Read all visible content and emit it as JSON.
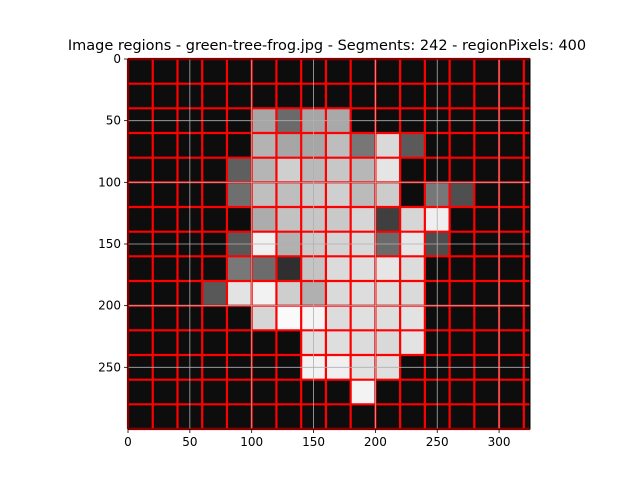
{
  "chart_data": {
    "type": "heatmap",
    "title": "Image regions - green-tree-frog.jpg - Segments: 242 - regionPixels: 400",
    "xlabel": "",
    "ylabel": "",
    "xlim": [
      0,
      325
    ],
    "ylim": [
      300,
      0
    ],
    "x_ticks": [
      0,
      50,
      100,
      150,
      200,
      250,
      300
    ],
    "y_ticks": [
      0,
      50,
      100,
      150,
      200,
      250
    ],
    "grid": true,
    "image_width": 325,
    "image_height": 300,
    "region_outline_color": "#ff0000",
    "grid_color": "#b0b0b0",
    "background_color": "#0d0d0d",
    "grid_lines_x": [
      0,
      20,
      40,
      60,
      80,
      100,
      120,
      140,
      160,
      180,
      200,
      220,
      240,
      260,
      280,
      300,
      320
    ],
    "grid_lines_y": [
      0,
      20,
      40,
      60,
      80,
      100,
      120,
      140,
      160,
      180,
      200,
      220,
      240,
      260,
      280,
      300
    ],
    "region_cells": [
      {
        "x": 100,
        "y": 40,
        "w": 20,
        "h": 20,
        "shade": "#a6a6a6"
      },
      {
        "x": 120,
        "y": 40,
        "w": 20,
        "h": 20,
        "shade": "#6a6a6a"
      },
      {
        "x": 140,
        "y": 40,
        "w": 20,
        "h": 20,
        "shade": "#a6a6a6"
      },
      {
        "x": 160,
        "y": 40,
        "w": 20,
        "h": 20,
        "shade": "#a9a9a9"
      },
      {
        "x": 180,
        "y": 60,
        "w": 20,
        "h": 20,
        "shade": "#777777"
      },
      {
        "x": 200,
        "y": 60,
        "w": 20,
        "h": 20,
        "shade": "#d9d9d9"
      },
      {
        "x": 220,
        "y": 60,
        "w": 20,
        "h": 20,
        "shade": "#5a5a5a"
      },
      {
        "x": 100,
        "y": 60,
        "w": 20,
        "h": 20,
        "shade": "#b3b3b3"
      },
      {
        "x": 120,
        "y": 60,
        "w": 20,
        "h": 20,
        "shade": "#a6a6a6"
      },
      {
        "x": 140,
        "y": 60,
        "w": 20,
        "h": 20,
        "shade": "#a6a6a6"
      },
      {
        "x": 160,
        "y": 60,
        "w": 20,
        "h": 20,
        "shade": "#bdbdbd"
      },
      {
        "x": 80,
        "y": 80,
        "w": 20,
        "h": 20,
        "shade": "#5f5f5f"
      },
      {
        "x": 100,
        "y": 80,
        "w": 20,
        "h": 20,
        "shade": "#b5b5b5"
      },
      {
        "x": 120,
        "y": 80,
        "w": 20,
        "h": 20,
        "shade": "#cfcfcf"
      },
      {
        "x": 140,
        "y": 80,
        "w": 20,
        "h": 20,
        "shade": "#b9b9b9"
      },
      {
        "x": 160,
        "y": 80,
        "w": 20,
        "h": 20,
        "shade": "#c7c7c7"
      },
      {
        "x": 180,
        "y": 80,
        "w": 20,
        "h": 20,
        "shade": "#b7b7b7"
      },
      {
        "x": 200,
        "y": 80,
        "w": 20,
        "h": 20,
        "shade": "#e5e5e5"
      },
      {
        "x": 240,
        "y": 100,
        "w": 20,
        "h": 20,
        "shade": "#777777"
      },
      {
        "x": 260,
        "y": 100,
        "w": 20,
        "h": 20,
        "shade": "#4f4f4f"
      },
      {
        "x": 80,
        "y": 100,
        "w": 20,
        "h": 20,
        "shade": "#6f6f6f"
      },
      {
        "x": 100,
        "y": 100,
        "w": 20,
        "h": 20,
        "shade": "#bfbfbf"
      },
      {
        "x": 120,
        "y": 100,
        "w": 20,
        "h": 20,
        "shade": "#bebebe"
      },
      {
        "x": 140,
        "y": 100,
        "w": 20,
        "h": 20,
        "shade": "#c8c8c8"
      },
      {
        "x": 160,
        "y": 100,
        "w": 20,
        "h": 20,
        "shade": "#cfcfcf"
      },
      {
        "x": 180,
        "y": 100,
        "w": 20,
        "h": 20,
        "shade": "#bbbbbb"
      },
      {
        "x": 200,
        "y": 100,
        "w": 20,
        "h": 20,
        "shade": "#cccccc"
      },
      {
        "x": 100,
        "y": 120,
        "w": 20,
        "h": 20,
        "shade": "#acacac"
      },
      {
        "x": 120,
        "y": 120,
        "w": 20,
        "h": 20,
        "shade": "#c2c2c2"
      },
      {
        "x": 140,
        "y": 120,
        "w": 20,
        "h": 20,
        "shade": "#c6c6c6"
      },
      {
        "x": 160,
        "y": 120,
        "w": 20,
        "h": 20,
        "shade": "#c9c9c9"
      },
      {
        "x": 180,
        "y": 120,
        "w": 20,
        "h": 20,
        "shade": "#d6d6d6"
      },
      {
        "x": 200,
        "y": 120,
        "w": 20,
        "h": 20,
        "shade": "#3f3f3f"
      },
      {
        "x": 220,
        "y": 120,
        "w": 20,
        "h": 20,
        "shade": "#d6d6d6"
      },
      {
        "x": 240,
        "y": 120,
        "w": 20,
        "h": 20,
        "shade": "#efefef"
      },
      {
        "x": 80,
        "y": 140,
        "w": 20,
        "h": 20,
        "shade": "#585858"
      },
      {
        "x": 100,
        "y": 140,
        "w": 20,
        "h": 20,
        "shade": "#f0f0f0"
      },
      {
        "x": 120,
        "y": 140,
        "w": 20,
        "h": 20,
        "shade": "#b1b1b1"
      },
      {
        "x": 140,
        "y": 140,
        "w": 20,
        "h": 20,
        "shade": "#cbcbcb"
      },
      {
        "x": 160,
        "y": 140,
        "w": 20,
        "h": 20,
        "shade": "#d4d4d4"
      },
      {
        "x": 180,
        "y": 140,
        "w": 20,
        "h": 20,
        "shade": "#d9d9d9"
      },
      {
        "x": 200,
        "y": 140,
        "w": 20,
        "h": 20,
        "shade": "#6a6a6a"
      },
      {
        "x": 220,
        "y": 140,
        "w": 20,
        "h": 20,
        "shade": "#e6e6e6"
      },
      {
        "x": 240,
        "y": 140,
        "w": 20,
        "h": 20,
        "shade": "#4d4d4d"
      },
      {
        "x": 80,
        "y": 160,
        "w": 20,
        "h": 20,
        "shade": "#787878"
      },
      {
        "x": 100,
        "y": 160,
        "w": 20,
        "h": 20,
        "shade": "#6c6c6c"
      },
      {
        "x": 120,
        "y": 160,
        "w": 20,
        "h": 20,
        "shade": "#2f2f2f"
      },
      {
        "x": 140,
        "y": 160,
        "w": 20,
        "h": 20,
        "shade": "#c4c4c4"
      },
      {
        "x": 160,
        "y": 160,
        "w": 20,
        "h": 20,
        "shade": "#dbdbdb"
      },
      {
        "x": 180,
        "y": 160,
        "w": 20,
        "h": 20,
        "shade": "#dedede"
      },
      {
        "x": 200,
        "y": 160,
        "w": 20,
        "h": 20,
        "shade": "#e6e6e6"
      },
      {
        "x": 220,
        "y": 160,
        "w": 20,
        "h": 20,
        "shade": "#dcdcdc"
      },
      {
        "x": 60,
        "y": 180,
        "w": 20,
        "h": 20,
        "shade": "#585858"
      },
      {
        "x": 80,
        "y": 180,
        "w": 20,
        "h": 20,
        "shade": "#e3e3e3"
      },
      {
        "x": 100,
        "y": 180,
        "w": 20,
        "h": 20,
        "shade": "#f2f2f2"
      },
      {
        "x": 120,
        "y": 180,
        "w": 20,
        "h": 20,
        "shade": "#cecece"
      },
      {
        "x": 140,
        "y": 180,
        "w": 20,
        "h": 20,
        "shade": "#b0b0b0"
      },
      {
        "x": 160,
        "y": 180,
        "w": 20,
        "h": 20,
        "shade": "#dadada"
      },
      {
        "x": 180,
        "y": 180,
        "w": 20,
        "h": 20,
        "shade": "#dddddd"
      },
      {
        "x": 200,
        "y": 180,
        "w": 20,
        "h": 20,
        "shade": "#dedede"
      },
      {
        "x": 220,
        "y": 180,
        "w": 20,
        "h": 20,
        "shade": "#dadada"
      },
      {
        "x": 100,
        "y": 200,
        "w": 20,
        "h": 20,
        "shade": "#d6d6d6"
      },
      {
        "x": 120,
        "y": 200,
        "w": 20,
        "h": 20,
        "shade": "#fafafa"
      },
      {
        "x": 140,
        "y": 200,
        "w": 20,
        "h": 20,
        "shade": "#f5f5f5"
      },
      {
        "x": 160,
        "y": 200,
        "w": 20,
        "h": 20,
        "shade": "#dcdcdc"
      },
      {
        "x": 180,
        "y": 200,
        "w": 20,
        "h": 20,
        "shade": "#e0e0e0"
      },
      {
        "x": 200,
        "y": 200,
        "w": 20,
        "h": 20,
        "shade": "#dedede"
      },
      {
        "x": 220,
        "y": 200,
        "w": 20,
        "h": 20,
        "shade": "#e2e2e2"
      },
      {
        "x": 140,
        "y": 220,
        "w": 20,
        "h": 20,
        "shade": "#e0e0e0"
      },
      {
        "x": 160,
        "y": 220,
        "w": 20,
        "h": 20,
        "shade": "#dedede"
      },
      {
        "x": 180,
        "y": 220,
        "w": 20,
        "h": 20,
        "shade": "#dcdcdc"
      },
      {
        "x": 200,
        "y": 220,
        "w": 20,
        "h": 20,
        "shade": "#d9d9d9"
      },
      {
        "x": 220,
        "y": 220,
        "w": 20,
        "h": 20,
        "shade": "#e3e3e3"
      },
      {
        "x": 140,
        "y": 240,
        "w": 20,
        "h": 20,
        "shade": "#f2f2f2"
      },
      {
        "x": 160,
        "y": 240,
        "w": 20,
        "h": 20,
        "shade": "#f0f0f0"
      },
      {
        "x": 180,
        "y": 240,
        "w": 20,
        "h": 20,
        "shade": "#e1e1e1"
      },
      {
        "x": 200,
        "y": 240,
        "w": 20,
        "h": 20,
        "shade": "#dfdfdf"
      },
      {
        "x": 180,
        "y": 260,
        "w": 20,
        "h": 20,
        "shade": "#f3f3f3"
      }
    ]
  }
}
